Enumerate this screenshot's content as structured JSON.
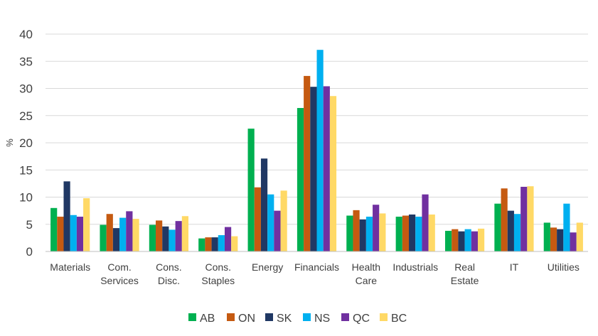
{
  "chart_data": {
    "type": "bar",
    "title": "",
    "xlabel": "",
    "ylabel": "%",
    "ylim": [
      0,
      40
    ],
    "yticks": [
      0,
      5,
      10,
      15,
      20,
      25,
      30,
      35,
      40
    ],
    "grid": true,
    "legend_position": "bottom",
    "categories": [
      [
        "Materials"
      ],
      [
        "Com.",
        "Services"
      ],
      [
        "Cons.",
        "Disc."
      ],
      [
        "Cons.",
        "Staples"
      ],
      [
        "Energy"
      ],
      [
        "Financials"
      ],
      [
        "Health",
        "Care"
      ],
      [
        "Industrials"
      ],
      [
        "Real",
        "Estate"
      ],
      [
        "IT"
      ],
      [
        "Utilities"
      ]
    ],
    "series": [
      {
        "name": "AB",
        "color": "#00B050",
        "values": [
          8.0,
          4.9,
          4.9,
          2.4,
          22.6,
          26.4,
          6.6,
          6.4,
          3.8,
          8.8,
          5.3
        ]
      },
      {
        "name": "ON",
        "color": "#C55A11",
        "values": [
          6.4,
          6.9,
          5.7,
          2.6,
          11.8,
          32.3,
          7.6,
          6.6,
          4.1,
          11.6,
          4.4
        ]
      },
      {
        "name": "SK",
        "color": "#203864",
        "values": [
          12.9,
          4.3,
          4.6,
          2.6,
          17.1,
          30.3,
          5.9,
          6.8,
          3.7,
          7.5,
          4.1
        ]
      },
      {
        "name": "NS",
        "color": "#00B0F0",
        "values": [
          6.7,
          6.2,
          4.0,
          3.0,
          10.5,
          37.1,
          6.4,
          6.4,
          4.1,
          6.9,
          8.8
        ]
      },
      {
        "name": "QC",
        "color": "#7030A0",
        "values": [
          6.4,
          7.4,
          5.6,
          4.5,
          7.5,
          30.4,
          8.6,
          10.5,
          3.7,
          11.9,
          3.5
        ]
      },
      {
        "name": "BC",
        "color": "#FFD966",
        "values": [
          9.8,
          6.0,
          6.5,
          2.8,
          11.2,
          28.6,
          7.0,
          6.8,
          4.2,
          12.0,
          5.3
        ]
      }
    ]
  }
}
